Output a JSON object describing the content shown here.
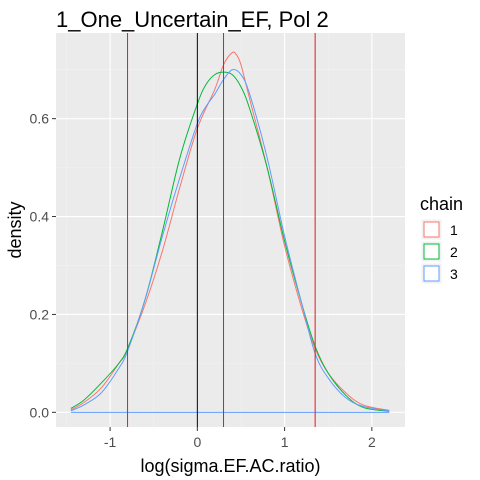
{
  "chart_data": {
    "type": "line",
    "title": "1_One_Uncertain_EF, Pol 2",
    "xlabel": "log(sigma.EF.AC.ratio)",
    "ylabel": "density",
    "xlim": [
      -1.62,
      2.38
    ],
    "ylim": [
      -0.03,
      0.775
    ],
    "x_ticks": [
      -1,
      0,
      1,
      2
    ],
    "x_tick_labels": [
      "-1",
      "0",
      "1",
      "2"
    ],
    "y_ticks": [
      0.0,
      0.2,
      0.4,
      0.6
    ],
    "y_tick_labels": [
      "0.0",
      "0.2",
      "0.4",
      "0.6"
    ],
    "grid": true,
    "legend_title": "chain",
    "legend_position": "right",
    "vertical_lines": [
      {
        "x": -0.8,
        "color": "#e41a1c"
      },
      {
        "x": 0.0,
        "color": "#000000"
      },
      {
        "x": 0.3,
        "color": "#e41a1c"
      },
      {
        "x": 1.35,
        "color": "#e41a1c"
      }
    ],
    "series": [
      {
        "name": "1",
        "color": "#F8766D",
        "x": [
          -1.45,
          -1.3,
          -1.1,
          -0.9,
          -0.8,
          -0.6,
          -0.4,
          -0.2,
          0.0,
          0.2,
          0.3,
          0.4,
          0.45,
          0.5,
          0.6,
          0.8,
          1.0,
          1.2,
          1.35,
          1.5,
          1.7,
          1.9,
          2.2
        ],
        "y": [
          0.005,
          0.02,
          0.05,
          0.1,
          0.13,
          0.22,
          0.33,
          0.46,
          0.58,
          0.66,
          0.71,
          0.735,
          0.73,
          0.71,
          0.64,
          0.5,
          0.34,
          0.21,
          0.13,
          0.08,
          0.04,
          0.015,
          0.004
        ]
      },
      {
        "name": "2",
        "color": "#00BA38",
        "x": [
          -1.45,
          -1.3,
          -1.1,
          -0.9,
          -0.8,
          -0.6,
          -0.4,
          -0.2,
          0.0,
          0.1,
          0.2,
          0.3,
          0.4,
          0.5,
          0.6,
          0.8,
          1.0,
          1.2,
          1.35,
          1.5,
          1.7,
          1.9,
          2.2
        ],
        "y": [
          0.008,
          0.025,
          0.06,
          0.1,
          0.13,
          0.23,
          0.37,
          0.52,
          0.63,
          0.67,
          0.69,
          0.695,
          0.69,
          0.665,
          0.62,
          0.5,
          0.35,
          0.22,
          0.135,
          0.08,
          0.035,
          0.01,
          0.002
        ]
      },
      {
        "name": "3",
        "color": "#619CFF",
        "x": [
          -1.45,
          -1.3,
          -1.1,
          -0.9,
          -0.8,
          -0.6,
          -0.4,
          -0.2,
          0.0,
          0.1,
          0.2,
          0.3,
          0.4,
          0.5,
          0.6,
          0.8,
          1.0,
          1.2,
          1.35,
          1.5,
          1.7,
          1.9,
          2.2
        ],
        "y": [
          0.003,
          0.015,
          0.04,
          0.09,
          0.125,
          0.23,
          0.36,
          0.48,
          0.59,
          0.625,
          0.65,
          0.68,
          0.7,
          0.69,
          0.65,
          0.52,
          0.36,
          0.22,
          0.12,
          0.07,
          0.03,
          0.012,
          0.003
        ]
      },
      {
        "name": "",
        "color": "#619CFF",
        "x": [
          -1.45,
          2.2
        ],
        "y": [
          0.0,
          0.0
        ]
      }
    ]
  }
}
